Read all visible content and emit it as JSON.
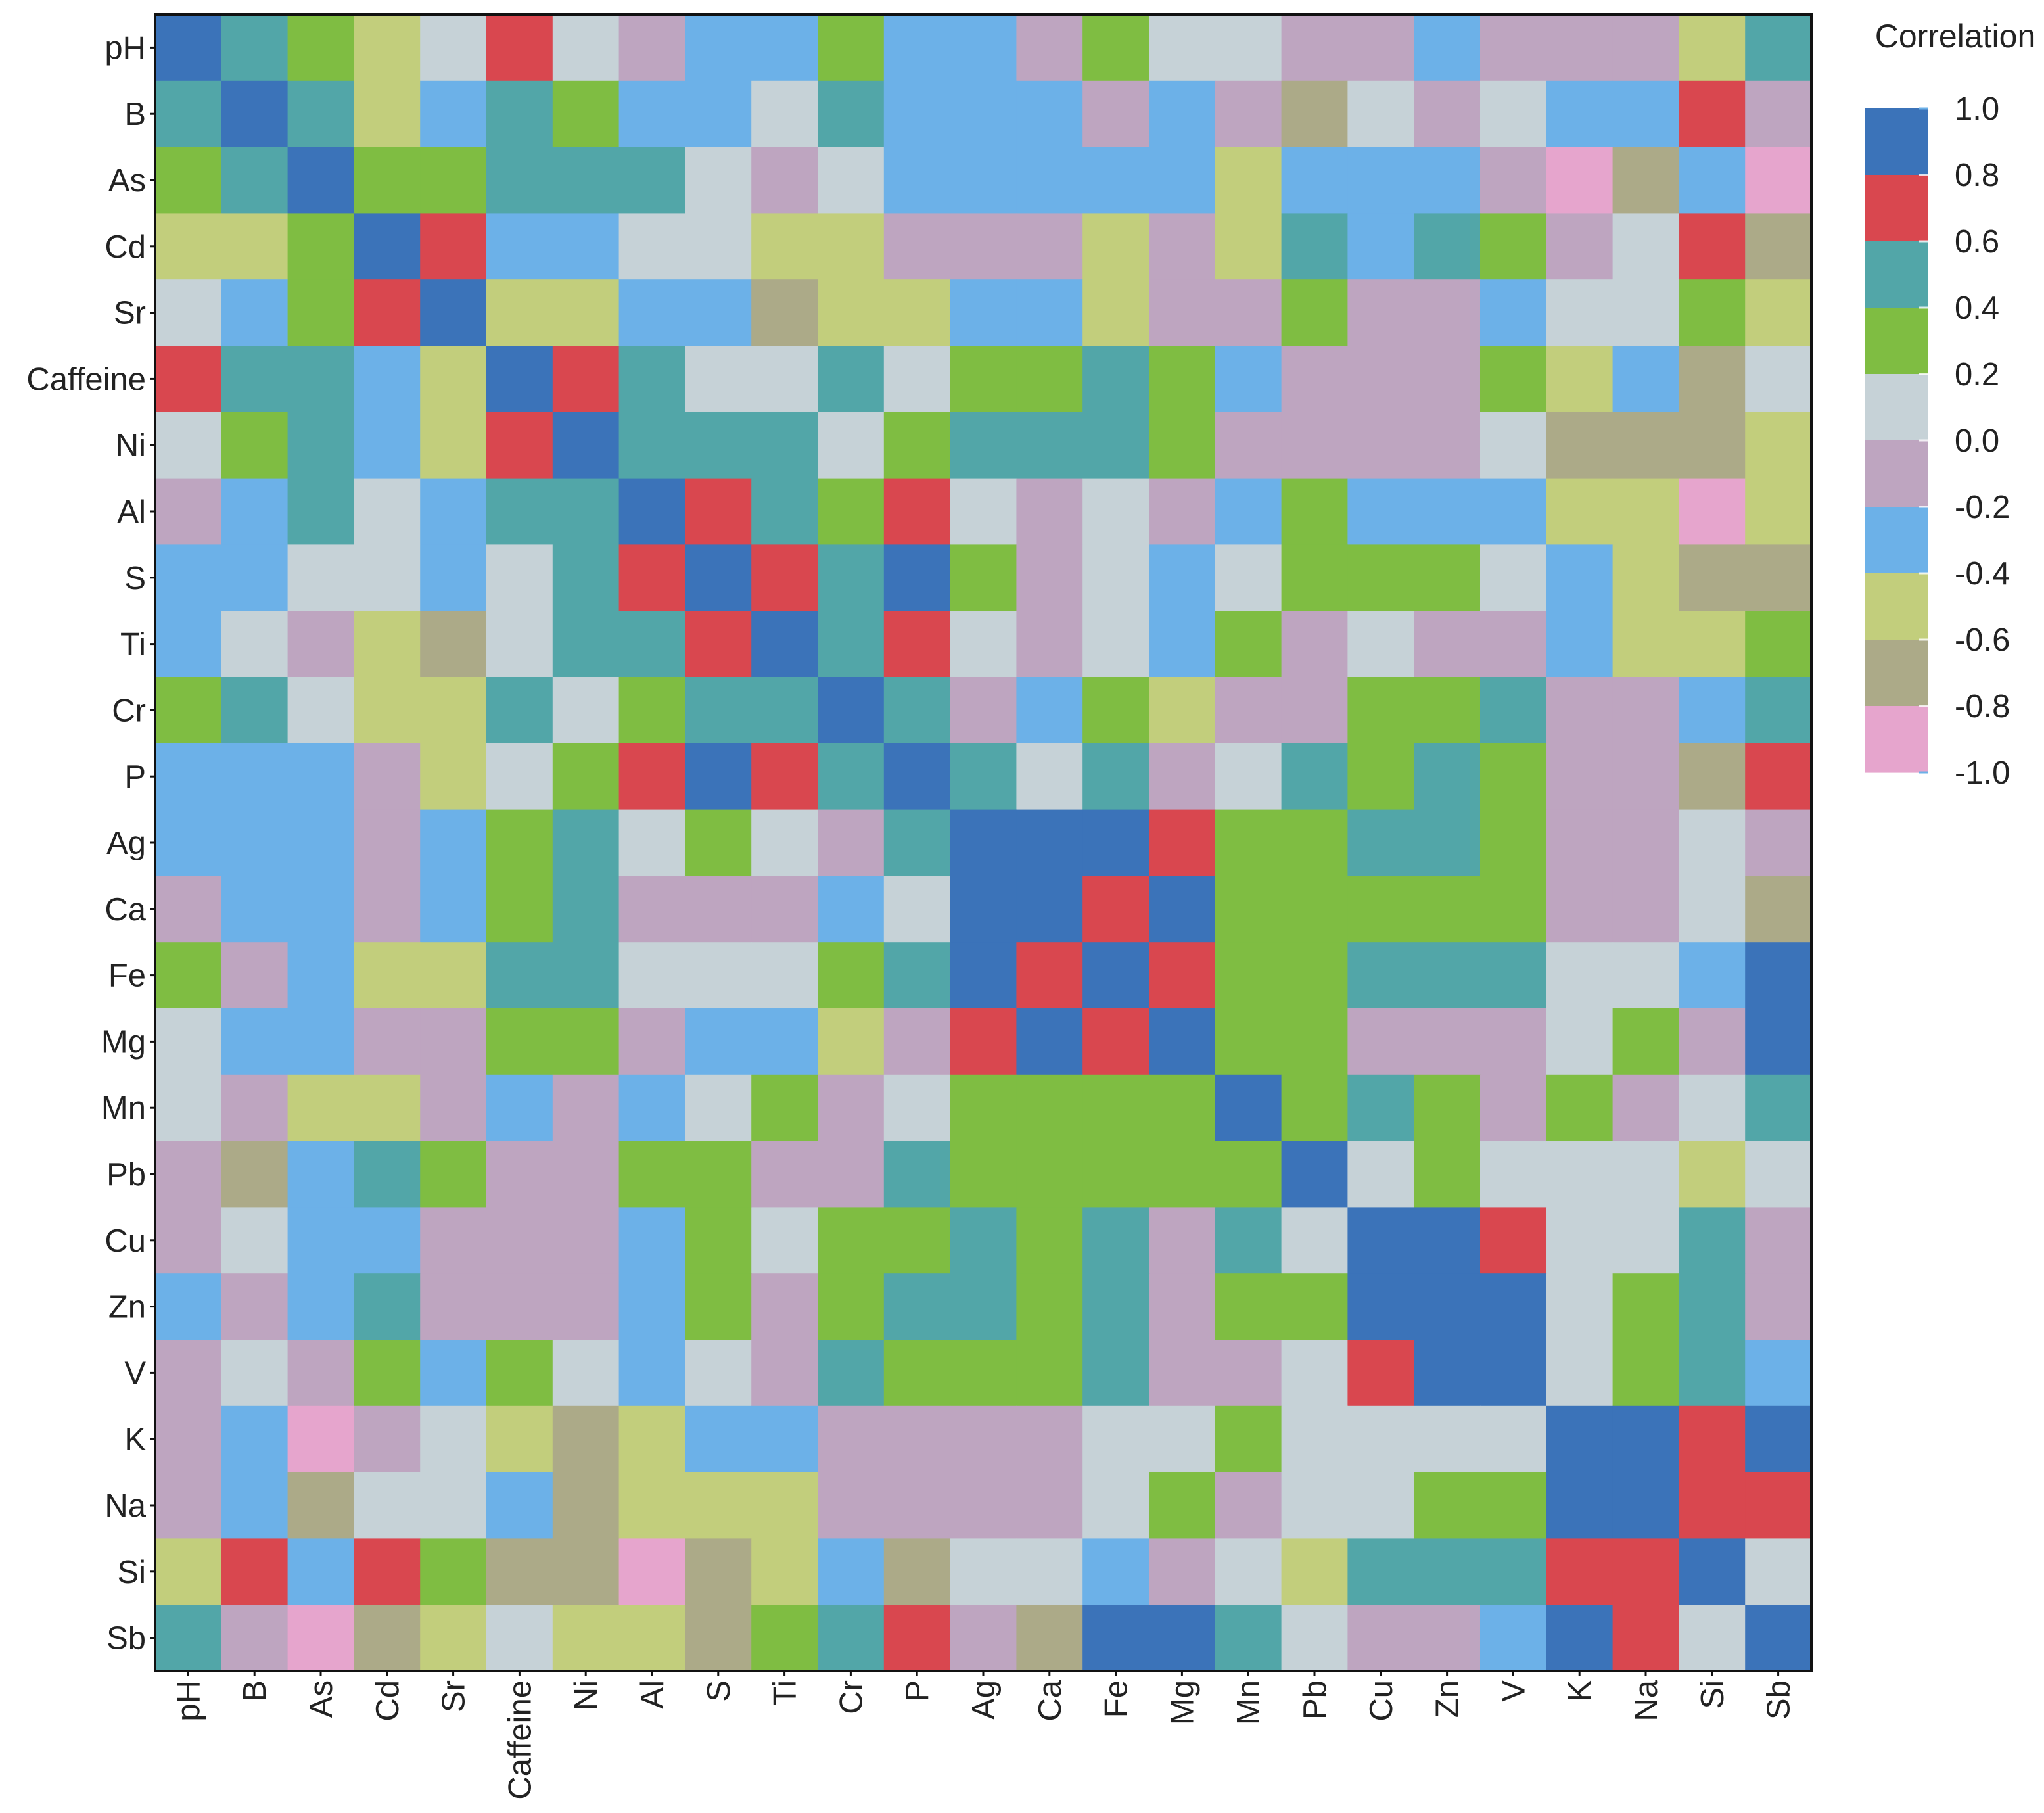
{
  "chart_data": {
    "type": "heatmap",
    "title": "",
    "xlabel": "",
    "ylabel": "",
    "variables": [
      "pH",
      "B",
      "As",
      "Cd",
      "Sr",
      "Caffeine",
      "Ni",
      "Al",
      "S",
      "Ti",
      "Cr",
      "P",
      "Ag",
      "Ca",
      "Fe",
      "Mg",
      "Mn",
      "Pb",
      "Cu",
      "Zn",
      "V",
      "K",
      "Na",
      "Si",
      "Sb"
    ],
    "values": [
      [
        1.0,
        0.5,
        0.3,
        -0.5,
        0.0,
        0.7,
        0.0,
        -0.1,
        -0.3,
        -0.3,
        0.3,
        -0.3,
        -0.3,
        -0.1,
        0.3,
        0.0,
        0.0,
        -0.1,
        -0.1,
        -0.3,
        -0.1,
        -0.1,
        -0.1,
        -0.5,
        0.5
      ],
      [
        0.5,
        1.0,
        0.5,
        -0.5,
        -0.3,
        0.5,
        0.3,
        -0.3,
        -0.3,
        0.0,
        0.5,
        -0.3,
        -0.3,
        -0.3,
        -0.1,
        -0.3,
        -0.1,
        -0.7,
        0.0,
        -0.1,
        0.0,
        -0.3,
        -0.3,
        0.7,
        -0.1
      ],
      [
        0.3,
        0.5,
        1.0,
        0.3,
        0.3,
        0.5,
        0.5,
        0.5,
        0.0,
        -0.1,
        0.0,
        -0.3,
        -0.3,
        -0.3,
        -0.3,
        -0.3,
        -0.5,
        -0.3,
        -0.3,
        -0.3,
        -0.1,
        -0.9,
        -0.7,
        -0.3,
        -0.9
      ],
      [
        -0.5,
        -0.5,
        0.3,
        1.0,
        0.7,
        -0.3,
        -0.3,
        0.0,
        0.0,
        -0.5,
        -0.5,
        -0.1,
        -0.1,
        -0.1,
        -0.5,
        -0.1,
        -0.5,
        0.5,
        -0.3,
        0.5,
        0.3,
        -0.1,
        0.0,
        0.7,
        -0.7
      ],
      [
        0.0,
        -0.3,
        0.3,
        0.7,
        1.0,
        -0.5,
        -0.5,
        -0.3,
        -0.3,
        -0.7,
        -0.5,
        -0.5,
        -0.3,
        -0.3,
        -0.5,
        -0.1,
        -0.1,
        0.3,
        -0.1,
        -0.1,
        -0.3,
        0.0,
        0.0,
        0.3,
        -0.5
      ],
      [
        0.7,
        0.5,
        0.5,
        -0.3,
        -0.5,
        1.0,
        0.7,
        0.5,
        0.0,
        0.0,
        0.5,
        0.0,
        0.3,
        0.3,
        0.5,
        0.3,
        -0.3,
        -0.1,
        -0.1,
        -0.1,
        0.3,
        -0.5,
        -0.3,
        -0.7,
        0.0
      ],
      [
        0.0,
        0.3,
        0.5,
        -0.3,
        -0.5,
        0.7,
        1.0,
        0.5,
        0.5,
        0.5,
        0.0,
        0.3,
        0.5,
        0.5,
        0.5,
        0.3,
        -0.1,
        -0.1,
        -0.1,
        -0.1,
        0.0,
        -0.7,
        -0.7,
        -0.7,
        -0.5
      ],
      [
        -0.1,
        -0.3,
        0.5,
        0.0,
        -0.3,
        0.5,
        0.5,
        1.0,
        0.7,
        0.5,
        0.3,
        0.7,
        0.0,
        -0.1,
        0.0,
        -0.1,
        -0.3,
        0.3,
        -0.3,
        -0.3,
        -0.3,
        -0.5,
        -0.5,
        -0.9,
        -0.5
      ],
      [
        -0.3,
        -0.3,
        0.0,
        0.0,
        -0.3,
        0.0,
        0.5,
        0.7,
        1.0,
        0.7,
        0.5,
        1.0,
        0.3,
        -0.1,
        0.0,
        -0.3,
        0.0,
        0.3,
        0.3,
        0.3,
        0.0,
        -0.3,
        -0.5,
        -0.7,
        -0.7
      ],
      [
        -0.3,
        0.0,
        -0.1,
        -0.5,
        -0.7,
        0.0,
        0.5,
        0.5,
        0.7,
        1.0,
        0.5,
        0.7,
        0.0,
        -0.1,
        0.0,
        -0.3,
        0.3,
        -0.1,
        0.0,
        -0.1,
        -0.1,
        -0.3,
        -0.5,
        -0.5,
        0.3
      ],
      [
        0.3,
        0.5,
        0.0,
        -0.5,
        -0.5,
        0.5,
        0.0,
        0.3,
        0.5,
        0.5,
        1.0,
        0.5,
        -0.1,
        -0.3,
        0.3,
        -0.5,
        -0.1,
        -0.1,
        0.3,
        0.3,
        0.5,
        -0.1,
        -0.1,
        -0.3,
        0.5
      ],
      [
        -0.3,
        -0.3,
        -0.3,
        -0.1,
        -0.5,
        0.0,
        0.3,
        0.7,
        1.0,
        0.7,
        0.5,
        1.0,
        0.5,
        0.0,
        0.5,
        -0.1,
        0.0,
        0.5,
        0.3,
        0.5,
        0.3,
        -0.1,
        -0.1,
        -0.7,
        0.7
      ],
      [
        -0.3,
        -0.3,
        -0.3,
        -0.1,
        -0.3,
        0.3,
        0.5,
        0.0,
        0.3,
        0.0,
        -0.1,
        0.5,
        1.0,
        1.0,
        1.0,
        0.7,
        0.3,
        0.3,
        0.5,
        0.5,
        0.3,
        -0.1,
        -0.1,
        0.0,
        -0.1
      ],
      [
        -0.1,
        -0.3,
        -0.3,
        -0.1,
        -0.3,
        0.3,
        0.5,
        -0.1,
        -0.1,
        -0.1,
        -0.3,
        0.0,
        1.0,
        1.0,
        0.7,
        1.0,
        0.3,
        0.3,
        0.3,
        0.3,
        0.3,
        -0.1,
        -0.1,
        0.0,
        -0.7
      ],
      [
        0.3,
        -0.1,
        -0.3,
        -0.5,
        -0.5,
        0.5,
        0.5,
        0.0,
        0.0,
        0.0,
        0.3,
        0.5,
        1.0,
        0.7,
        1.0,
        0.7,
        0.3,
        0.3,
        0.5,
        0.5,
        0.5,
        0.0,
        0.0,
        -0.3,
        1.0
      ],
      [
        0.0,
        -0.3,
        -0.3,
        -0.1,
        -0.1,
        0.3,
        0.3,
        -0.1,
        -0.3,
        -0.3,
        -0.5,
        -0.1,
        0.7,
        1.0,
        0.7,
        1.0,
        0.3,
        0.3,
        -0.1,
        -0.1,
        -0.1,
        0.0,
        0.3,
        -0.1,
        1.0
      ],
      [
        0.0,
        -0.1,
        -0.5,
        -0.5,
        -0.1,
        -0.3,
        -0.1,
        -0.3,
        0.0,
        0.3,
        -0.1,
        0.0,
        0.3,
        0.3,
        0.3,
        0.3,
        1.0,
        0.3,
        0.5,
        0.3,
        -0.1,
        0.3,
        -0.1,
        0.0,
        0.5
      ],
      [
        -0.1,
        -0.7,
        -0.3,
        0.5,
        0.3,
        -0.1,
        -0.1,
        0.3,
        0.3,
        -0.1,
        -0.1,
        0.5,
        0.3,
        0.3,
        0.3,
        0.3,
        0.3,
        1.0,
        0.0,
        0.3,
        0.0,
        0.0,
        0.0,
        -0.5,
        0.0
      ],
      [
        -0.1,
        0.0,
        -0.3,
        -0.3,
        -0.1,
        -0.1,
        -0.1,
        -0.3,
        0.3,
        0.0,
        0.3,
        0.3,
        0.5,
        0.3,
        0.5,
        -0.1,
        0.5,
        0.0,
        1.0,
        1.0,
        0.7,
        0.0,
        0.0,
        0.5,
        -0.1
      ],
      [
        -0.3,
        -0.1,
        -0.3,
        0.5,
        -0.1,
        -0.1,
        -0.1,
        -0.3,
        0.3,
        -0.1,
        0.3,
        0.5,
        0.5,
        0.3,
        0.5,
        -0.1,
        0.3,
        0.3,
        1.0,
        1.0,
        1.0,
        0.0,
        0.3,
        0.5,
        -0.1
      ],
      [
        -0.1,
        0.0,
        -0.1,
        0.3,
        -0.3,
        0.3,
        0.0,
        -0.3,
        0.0,
        -0.1,
        0.5,
        0.3,
        0.3,
        0.3,
        0.5,
        -0.1,
        -0.1,
        0.0,
        0.7,
        1.0,
        1.0,
        0.0,
        0.3,
        0.5,
        -0.3
      ],
      [
        -0.1,
        -0.3,
        -0.9,
        -0.1,
        0.0,
        -0.5,
        -0.7,
        -0.5,
        -0.3,
        -0.3,
        -0.1,
        -0.1,
        -0.1,
        -0.1,
        0.0,
        0.0,
        0.3,
        0.0,
        0.0,
        0.0,
        0.0,
        1.0,
        1.0,
        0.7,
        1.0
      ],
      [
        -0.1,
        -0.3,
        -0.7,
        0.0,
        0.0,
        -0.3,
        -0.7,
        -0.5,
        -0.5,
        -0.5,
        -0.1,
        -0.1,
        -0.1,
        -0.1,
        0.0,
        0.3,
        -0.1,
        0.0,
        0.0,
        0.3,
        0.3,
        1.0,
        1.0,
        0.7,
        0.7
      ],
      [
        -0.5,
        0.7,
        -0.3,
        0.7,
        0.3,
        -0.7,
        -0.7,
        -0.9,
        -0.7,
        -0.5,
        -0.3,
        -0.7,
        0.0,
        0.0,
        -0.3,
        -0.1,
        0.0,
        -0.5,
        0.5,
        0.5,
        0.5,
        0.7,
        0.7,
        1.0,
        0.0
      ],
      [
        0.5,
        -0.1,
        -0.9,
        -0.7,
        -0.5,
        0.0,
        -0.5,
        -0.5,
        -0.7,
        0.3,
        0.5,
        0.7,
        -0.1,
        -0.7,
        1.0,
        1.0,
        0.5,
        0.0,
        -0.1,
        -0.1,
        -0.3,
        1.0,
        0.7,
        0.0,
        1.0
      ]
    ],
    "colorbar": {
      "label": "Correlation",
      "ticks": [
        "1.0",
        "0.8",
        "0.6",
        "0.4",
        "0.2",
        "0.0",
        "-0.2",
        "-0.4",
        "-0.6",
        "-0.8",
        "-1.0"
      ],
      "range": [
        -1.0,
        1.0
      ],
      "bins": [
        {
          "min": 0.8,
          "max": 1.0,
          "color": "#3b73b9"
        },
        {
          "min": 0.6,
          "max": 0.8,
          "color": "#d9474f"
        },
        {
          "min": 0.4,
          "max": 0.6,
          "color": "#52a6a8"
        },
        {
          "min": 0.2,
          "max": 0.4,
          "color": "#7fbd42"
        },
        {
          "min": 0.0,
          "max": 0.2,
          "color": "#c6d2d7"
        },
        {
          "min": -0.2,
          "max": 0.0,
          "color": "#bea5c0"
        },
        {
          "min": -0.4,
          "max": -0.2,
          "color": "#6cb1e8"
        },
        {
          "min": -0.6,
          "max": -0.4,
          "color": "#c2ce7c"
        },
        {
          "min": -0.8,
          "max": -0.6,
          "color": "#acaa88"
        },
        {
          "min": -1.0,
          "max": -0.8,
          "color": "#e6a5cd"
        }
      ]
    },
    "grid": false
  }
}
